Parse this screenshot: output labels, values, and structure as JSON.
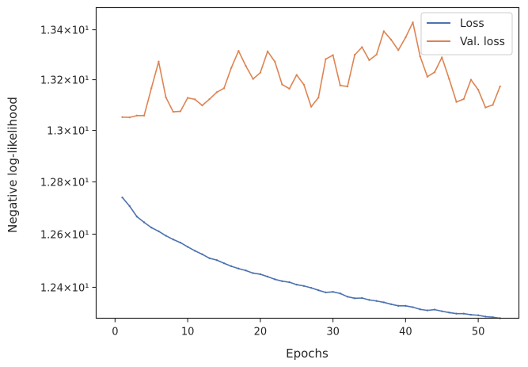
{
  "chart_data": {
    "type": "line",
    "xlabel": "Epochs",
    "ylabel": "Negative log-likelihood",
    "y_scale": "log",
    "xlim": [
      -2.6,
      55.6
    ],
    "ylim": [
      12.285,
      13.49
    ],
    "grid": false,
    "legend_position": "top-right",
    "x_ticks": [
      {
        "value": 0,
        "label": "0"
      },
      {
        "value": 10,
        "label": "10"
      },
      {
        "value": 20,
        "label": "20"
      },
      {
        "value": 30,
        "label": "30"
      },
      {
        "value": 40,
        "label": "40"
      },
      {
        "value": 50,
        "label": "50"
      }
    ],
    "y_ticks": [
      {
        "value": 12.4,
        "label": "1.24×10¹"
      },
      {
        "value": 12.6,
        "label": "1.26×10¹"
      },
      {
        "value": 12.8,
        "label": "1.28×10¹"
      },
      {
        "value": 13.0,
        "label": "1.3×10¹"
      },
      {
        "value": 13.2,
        "label": "1.32×10¹"
      },
      {
        "value": 13.4,
        "label": "1.34×10¹"
      }
    ],
    "x": [
      1,
      2,
      3,
      4,
      5,
      6,
      7,
      8,
      9,
      10,
      11,
      12,
      13,
      14,
      15,
      16,
      17,
      18,
      19,
      20,
      21,
      22,
      23,
      24,
      25,
      26,
      27,
      28,
      29,
      30,
      31,
      32,
      33,
      34,
      35,
      36,
      37,
      38,
      39,
      40,
      41,
      42,
      43,
      44,
      45,
      46,
      47,
      48,
      49,
      50,
      51,
      52,
      53
    ],
    "series": [
      {
        "name": "Loss",
        "color": "#4c72b0",
        "values": [
          12.74,
          12.707,
          12.667,
          12.645,
          12.625,
          12.611,
          12.594,
          12.58,
          12.568,
          12.552,
          12.537,
          12.524,
          12.509,
          12.502,
          12.49,
          12.479,
          12.47,
          12.463,
          12.453,
          12.449,
          12.44,
          12.43,
          12.423,
          12.419,
          12.41,
          12.405,
          12.398,
          12.389,
          12.381,
          12.383,
          12.377,
          12.365,
          12.359,
          12.36,
          12.353,
          12.349,
          12.344,
          12.337,
          12.331,
          12.331,
          12.326,
          12.318,
          12.314,
          12.317,
          12.311,
          12.306,
          12.302,
          12.302,
          12.298,
          12.296,
          12.291,
          12.289,
          12.285
        ]
      },
      {
        "name": "Val. loss",
        "color": "#dd8452",
        "values": [
          13.052,
          13.051,
          13.058,
          13.058,
          13.166,
          13.272,
          13.13,
          13.073,
          13.075,
          13.128,
          13.122,
          13.098,
          13.123,
          13.15,
          13.166,
          13.247,
          13.315,
          13.255,
          13.203,
          13.228,
          13.313,
          13.272,
          13.181,
          13.164,
          13.219,
          13.18,
          13.093,
          13.129,
          13.282,
          13.298,
          13.177,
          13.173,
          13.299,
          13.33,
          13.278,
          13.3,
          13.394,
          13.36,
          13.318,
          13.369,
          13.43,
          13.293,
          13.212,
          13.23,
          13.289,
          13.203,
          13.112,
          13.123,
          13.2,
          13.16,
          13.09,
          13.1,
          13.173
        ]
      }
    ]
  }
}
